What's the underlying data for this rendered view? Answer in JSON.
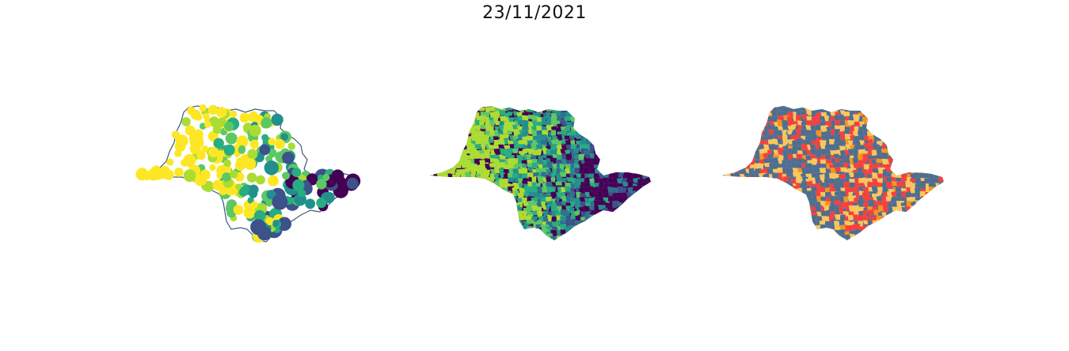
{
  "title": "23/11/2021",
  "maps": [
    {
      "name": "points",
      "style": "bubble",
      "palette": [
        "#440154",
        "#3b528b",
        "#21908c",
        "#27ad81",
        "#5dc863",
        "#aadc32",
        "#fde725"
      ]
    },
    {
      "name": "choropleth-continuous",
      "style": "choropleth",
      "palette": [
        "#440154",
        "#3b528b",
        "#2c728e",
        "#21908c",
        "#27ad81",
        "#5dc863",
        "#aadc32"
      ]
    },
    {
      "name": "choropleth-categorical",
      "style": "choropleth",
      "palette": [
        "#4f6d8f",
        "#fcc65a",
        "#f5403d",
        "#f7941d"
      ]
    }
  ]
}
